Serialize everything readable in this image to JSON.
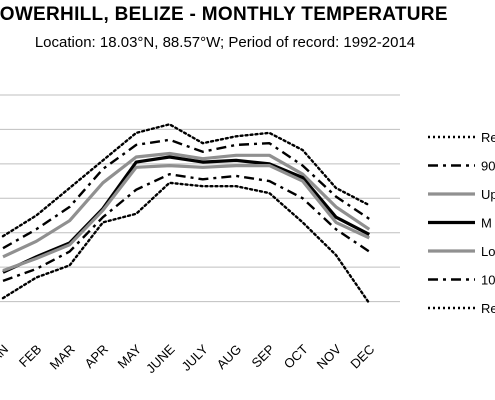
{
  "chart_data": {
    "type": "line",
    "title": "TOWERHILL, BELIZE - MONTHLY TEMPERATURE",
    "subtitle": "Location: 18.03°N, 88.57°W; Period of record: 1992-2014",
    "categories": [
      "JAN",
      "FEB",
      "MAR",
      "APR",
      "MAY",
      "JUNE",
      "JULY",
      "AUG",
      "SEP",
      "OCT",
      "NOV",
      "DEC"
    ],
    "ylim": [
      0,
      7
    ],
    "grid": true,
    "legend_position": "right",
    "series": [
      {
        "name": "Re",
        "style": "dotted",
        "color": "#000000",
        "values": [
          2.9,
          3.5,
          4.3,
          5.1,
          5.9,
          6.15,
          5.6,
          5.8,
          5.9,
          5.4,
          4.3,
          3.8
        ]
      },
      {
        "name": "90",
        "style": "dashdot",
        "color": "#000000",
        "values": [
          2.55,
          3.1,
          3.75,
          4.85,
          5.55,
          5.7,
          5.35,
          5.55,
          5.6,
          4.95,
          4.05,
          3.4
        ]
      },
      {
        "name": "Up",
        "style": "solid",
        "color": "#909090",
        "values": [
          2.3,
          2.75,
          3.35,
          4.45,
          5.2,
          5.3,
          5.15,
          5.25,
          5.25,
          4.7,
          3.75,
          3.1
        ]
      },
      {
        "name": "M",
        "style": "solid",
        "color": "#000000",
        "values": [
          1.85,
          2.3,
          2.7,
          3.7,
          5.05,
          5.2,
          5.05,
          5.1,
          5.0,
          4.6,
          3.45,
          2.95
        ]
      },
      {
        "name": "Lo",
        "style": "solid",
        "color": "#909090",
        "values": [
          1.9,
          2.25,
          2.65,
          3.65,
          4.9,
          4.95,
          4.9,
          4.95,
          4.95,
          4.5,
          3.3,
          2.85
        ]
      },
      {
        "name": "10",
        "style": "dashdot",
        "color": "#000000",
        "values": [
          1.6,
          1.95,
          2.45,
          3.45,
          4.25,
          4.7,
          4.55,
          4.65,
          4.5,
          4.0,
          3.1,
          2.45
        ]
      },
      {
        "name": "Re",
        "style": "dotted",
        "color": "#000000",
        "values": [
          1.1,
          1.7,
          2.05,
          3.3,
          3.55,
          4.45,
          4.35,
          4.35,
          4.15,
          3.3,
          2.35,
          0.95
        ]
      }
    ]
  }
}
